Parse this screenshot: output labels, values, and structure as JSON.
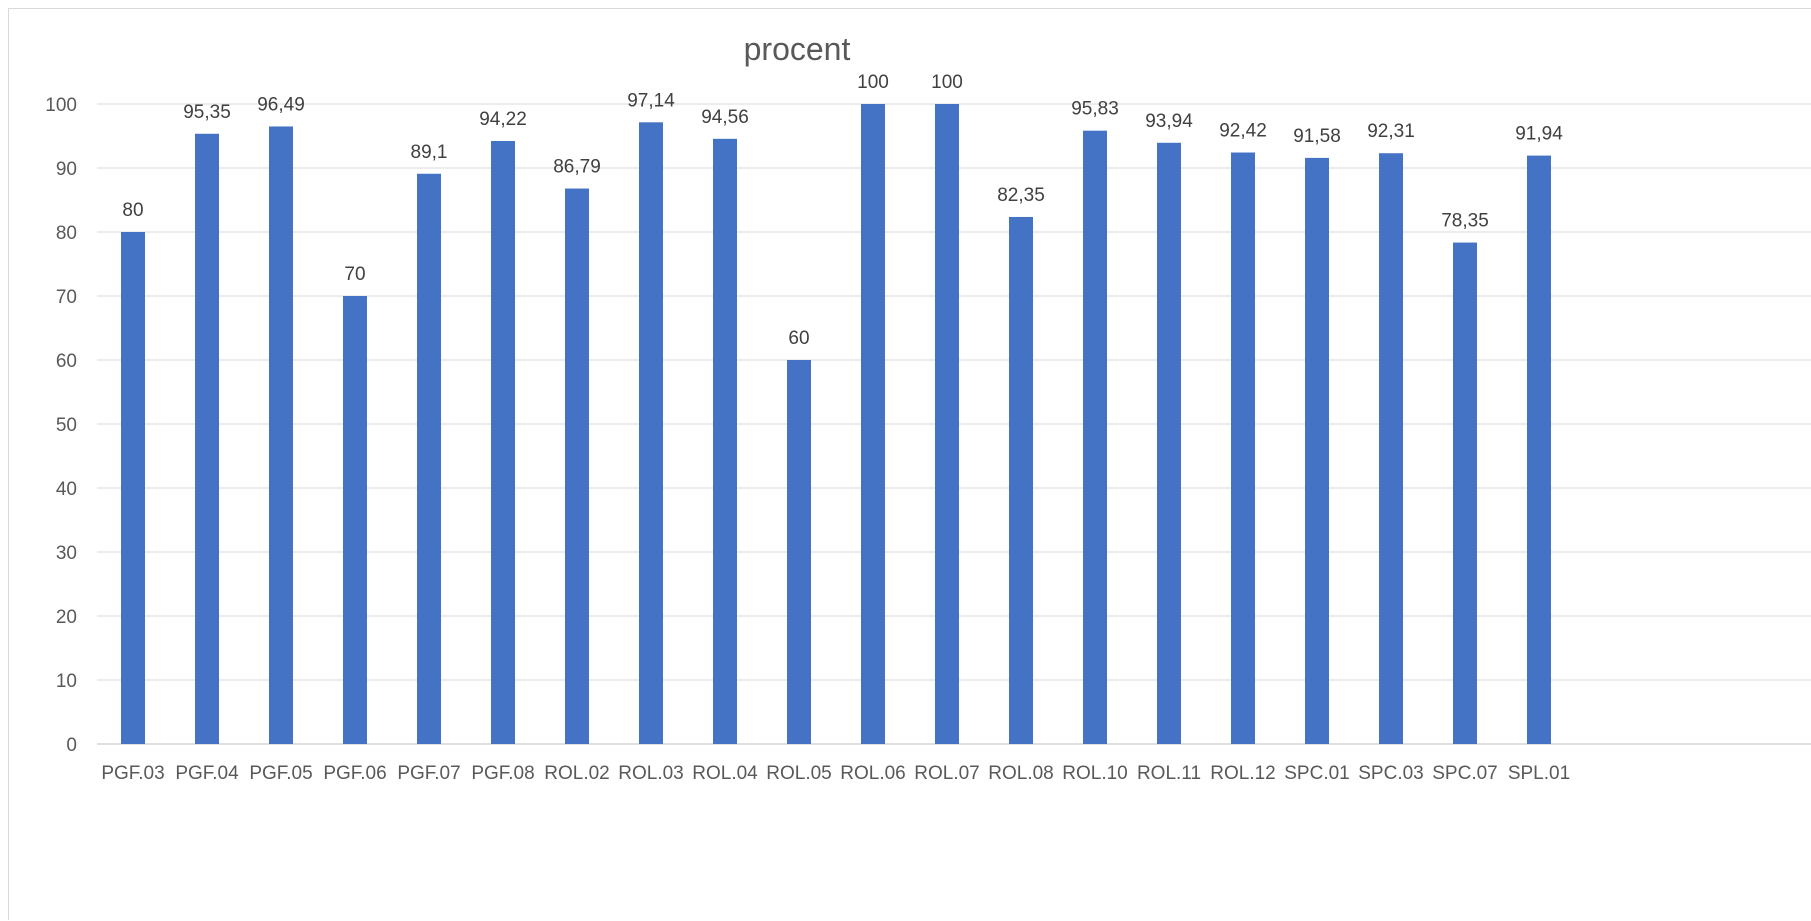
{
  "chart_data": {
    "type": "bar",
    "title": "procent",
    "categories": [
      "PGF.03",
      "PGF.04",
      "PGF.05",
      "PGF.06",
      "PGF.07",
      "PGF.08",
      "ROL.02",
      "ROL.03",
      "ROL.04",
      "ROL.05",
      "ROL.06",
      "ROL.07",
      "ROL.08",
      "ROL.10",
      "ROL.11",
      "ROL.12",
      "SPC.01",
      "SPC.03",
      "SPC.07",
      "SPL.01"
    ],
    "values": [
      80,
      95.35,
      96.49,
      70,
      89.1,
      94.22,
      86.79,
      97.14,
      94.56,
      60,
      100,
      100,
      82.35,
      95.83,
      93.94,
      92.42,
      91.58,
      92.31,
      78.35,
      91.94
    ],
    "data_labels": [
      "80",
      "95,35",
      "96,49",
      "70",
      "89,1",
      "94,22",
      "86,79",
      "97,14",
      "94,56",
      "60",
      "100",
      "100",
      "82,35",
      "95,83",
      "93,94",
      "92,42",
      "91,58",
      "92,31",
      "78,35",
      "91,94"
    ],
    "ylim": [
      0,
      100
    ],
    "yticks": [
      0,
      10,
      20,
      30,
      40,
      50,
      60,
      70,
      80,
      90,
      100
    ],
    "xlabel": "",
    "ylabel": "",
    "grid": true,
    "legend": "none",
    "bar_color": "#4472C4"
  }
}
